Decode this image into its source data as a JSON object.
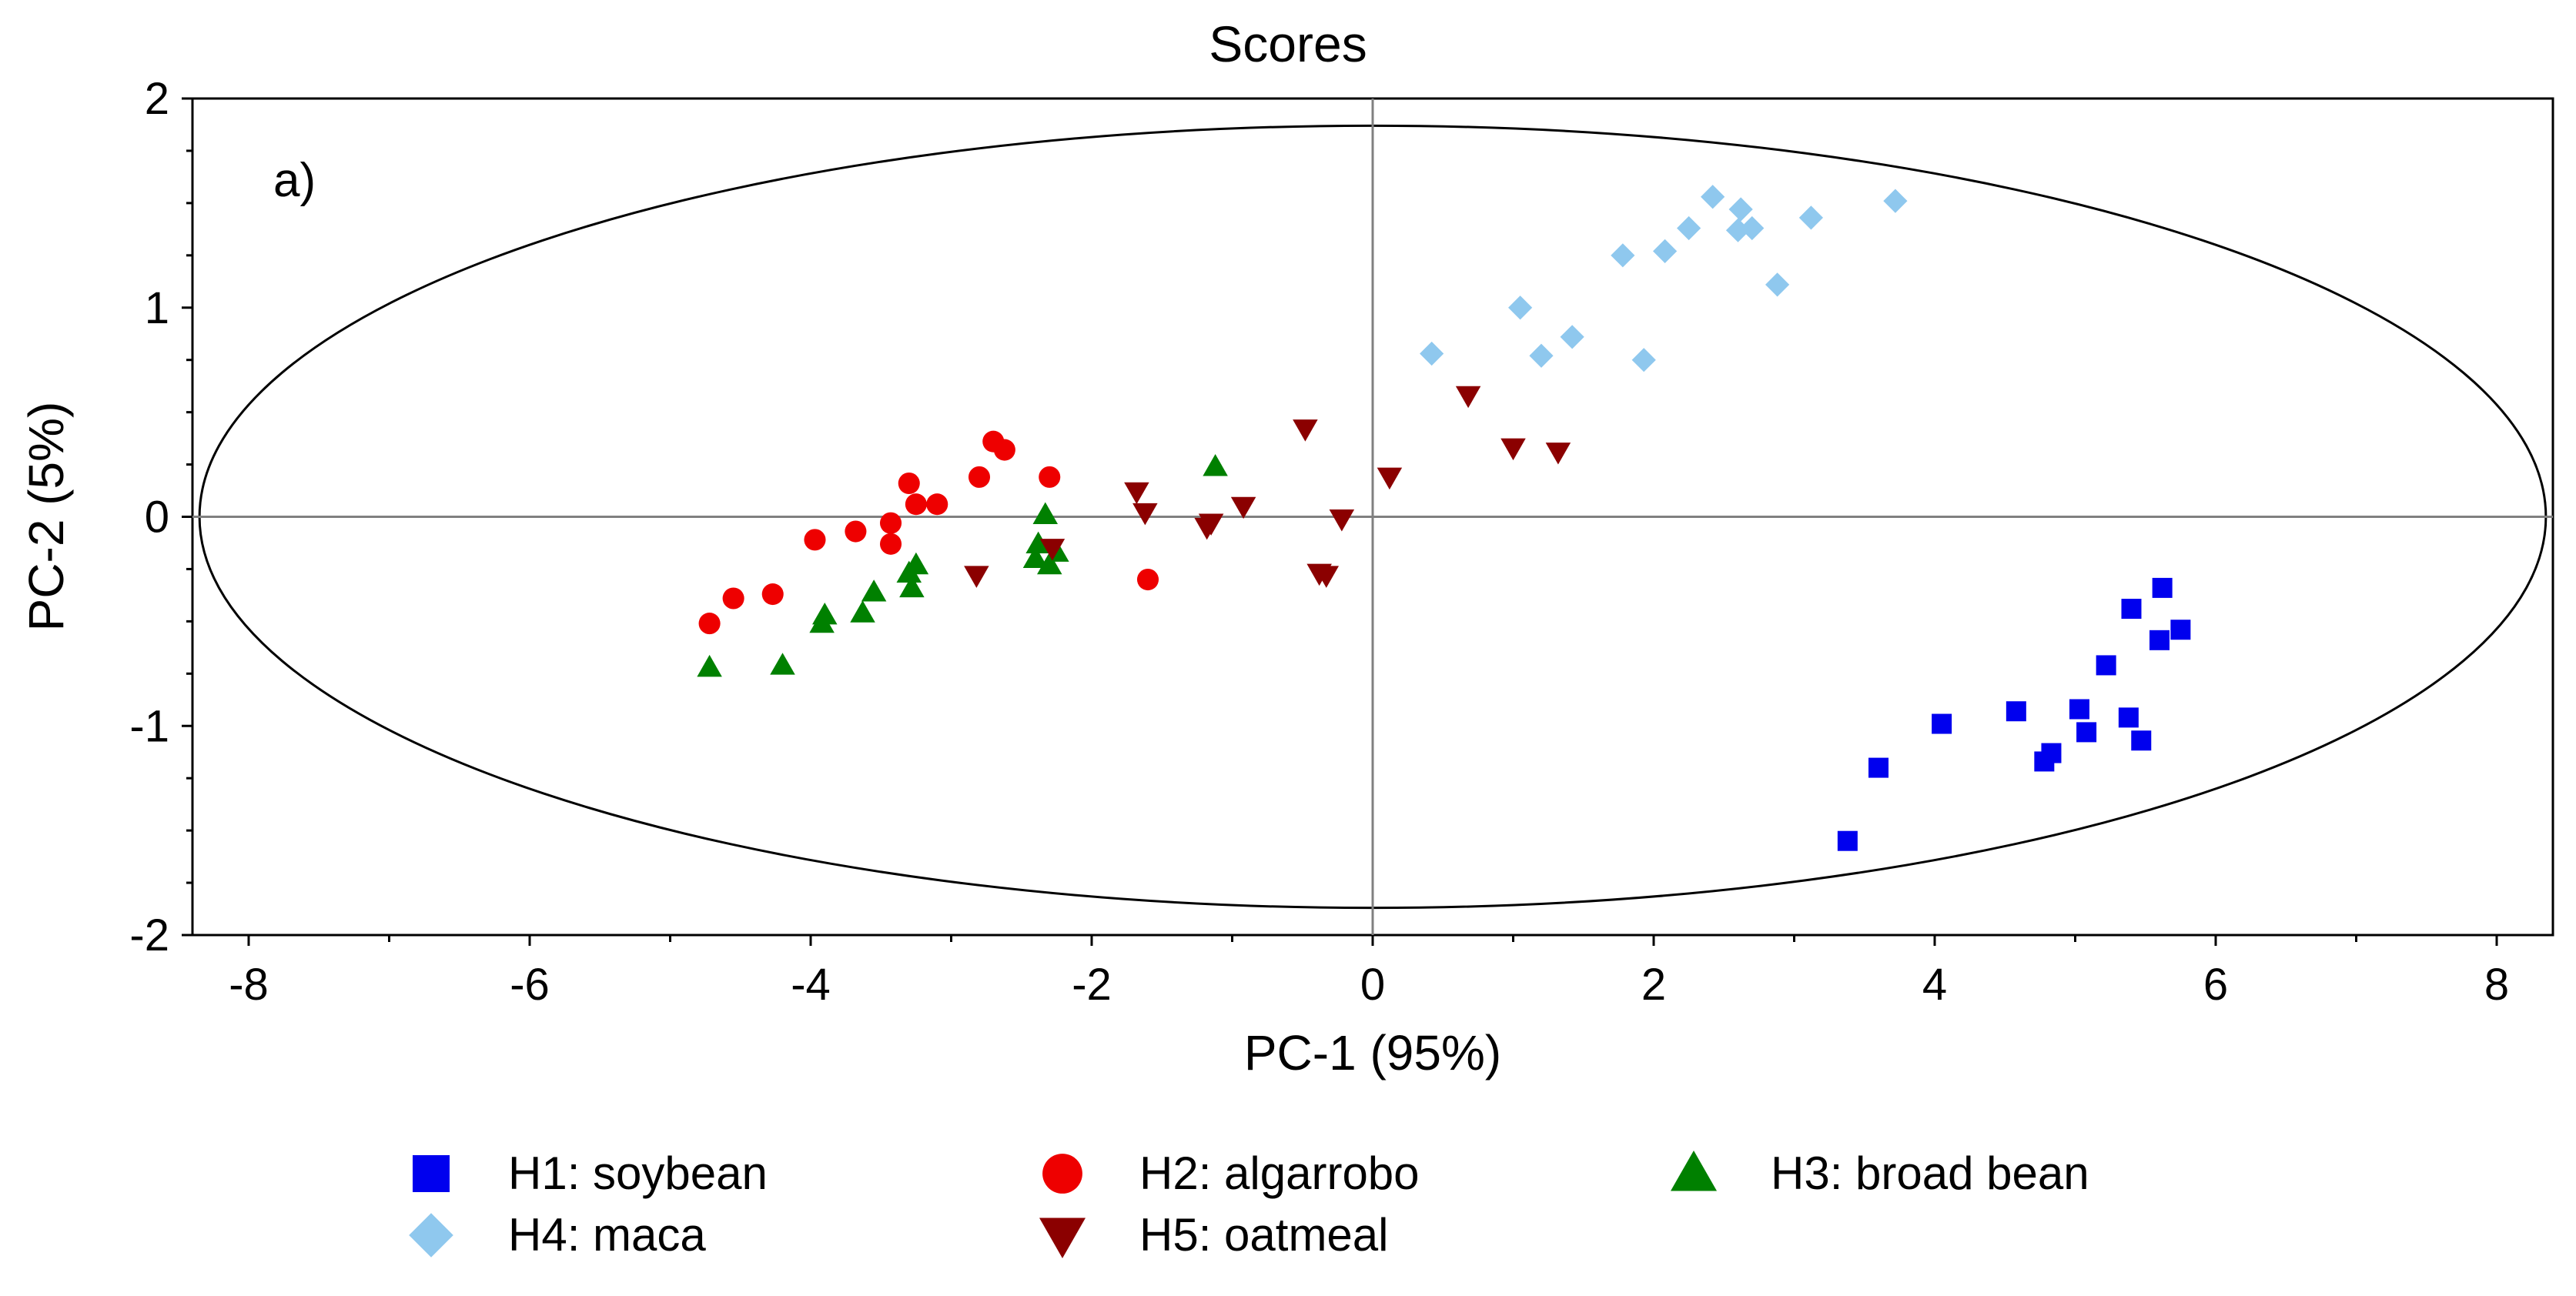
{
  "chart_data": {
    "type": "scatter",
    "title": "Scores",
    "xlabel": "PC-1 (95%)",
    "ylabel": "PC-2 (5%)",
    "panel_label": "a)",
    "xlim": [
      -8.4,
      8.4
    ],
    "ylim": [
      -2,
      2
    ],
    "xticks": [
      -8,
      -6,
      -4,
      -2,
      0,
      2,
      4,
      6,
      8
    ],
    "yticks": [
      -2,
      -1,
      0,
      1,
      2
    ],
    "grid": false,
    "reference_lines": {
      "x": 0,
      "y": 0
    },
    "confidence_ellipse": {
      "cx": 0,
      "cy": 0,
      "rx": 8.35,
      "ry": 1.87
    },
    "legend_position": "bottom",
    "series": [
      {
        "name": "H1: soybean",
        "marker": "square",
        "color": "#0000ee",
        "points": [
          [
            3.38,
            -1.55
          ],
          [
            3.6,
            -1.2
          ],
          [
            4.05,
            -0.99
          ],
          [
            4.58,
            -0.93
          ],
          [
            4.78,
            -1.17
          ],
          [
            4.83,
            -1.13
          ],
          [
            5.03,
            -0.92
          ],
          [
            5.08,
            -1.03
          ],
          [
            5.22,
            -0.71
          ],
          [
            5.38,
            -0.96
          ],
          [
            5.4,
            -0.44
          ],
          [
            5.47,
            -1.07
          ],
          [
            5.6,
            -0.59
          ],
          [
            5.62,
            -0.34
          ],
          [
            5.75,
            -0.54
          ]
        ]
      },
      {
        "name": "H2: algarrobo",
        "marker": "circle",
        "color": "#ee0000",
        "points": [
          [
            -4.72,
            -0.51
          ],
          [
            -4.55,
            -0.39
          ],
          [
            -4.27,
            -0.37
          ],
          [
            -3.97,
            -0.11
          ],
          [
            -3.68,
            -0.07
          ],
          [
            -3.43,
            -0.03
          ],
          [
            -3.43,
            -0.13
          ],
          [
            -3.3,
            0.16
          ],
          [
            -3.25,
            0.06
          ],
          [
            -3.1,
            0.06
          ],
          [
            -2.8,
            0.19
          ],
          [
            -2.7,
            0.36
          ],
          [
            -2.62,
            0.32
          ],
          [
            -2.3,
            0.19
          ],
          [
            -1.6,
            -0.3
          ]
        ]
      },
      {
        "name": "H3: broad bean",
        "marker": "triangle-up",
        "color": "#008000",
        "points": [
          [
            -4.72,
            -0.72
          ],
          [
            -4.2,
            -0.71
          ],
          [
            -3.92,
            -0.51
          ],
          [
            -3.9,
            -0.47
          ],
          [
            -3.63,
            -0.46
          ],
          [
            -3.55,
            -0.36
          ],
          [
            -3.28,
            -0.34
          ],
          [
            -3.3,
            -0.27
          ],
          [
            -3.25,
            -0.23
          ],
          [
            -2.4,
            -0.2
          ],
          [
            -2.38,
            -0.13
          ],
          [
            -2.33,
            0.01
          ],
          [
            -2.3,
            -0.23
          ],
          [
            -2.25,
            -0.17
          ],
          [
            -1.12,
            0.24
          ]
        ]
      },
      {
        "name": "H4: maca",
        "marker": "diamond",
        "color": "#8fc8ee",
        "points": [
          [
            0.42,
            0.78
          ],
          [
            1.05,
            1.0
          ],
          [
            1.2,
            0.77
          ],
          [
            1.42,
            0.86
          ],
          [
            1.78,
            1.25
          ],
          [
            1.93,
            0.75
          ],
          [
            2.08,
            1.27
          ],
          [
            2.25,
            1.38
          ],
          [
            2.42,
            1.53
          ],
          [
            2.6,
            1.37
          ],
          [
            2.62,
            1.47
          ],
          [
            2.7,
            1.38
          ],
          [
            2.88,
            1.11
          ],
          [
            3.12,
            1.43
          ],
          [
            3.72,
            1.51
          ]
        ]
      },
      {
        "name": "H5: oatmeal",
        "marker": "triangle-down",
        "color": "#8b0000",
        "points": [
          [
            -2.82,
            -0.28
          ],
          [
            -2.28,
            -0.15
          ],
          [
            -1.68,
            0.12
          ],
          [
            -1.62,
            0.02
          ],
          [
            -1.18,
            -0.05
          ],
          [
            -1.15,
            -0.03
          ],
          [
            -0.92,
            0.05
          ],
          [
            -0.48,
            0.42
          ],
          [
            -0.38,
            -0.27
          ],
          [
            -0.33,
            -0.28
          ],
          [
            -0.22,
            -0.01
          ],
          [
            0.12,
            0.19
          ],
          [
            0.68,
            0.58
          ],
          [
            1.0,
            0.33
          ],
          [
            1.32,
            0.31
          ]
        ]
      }
    ]
  }
}
